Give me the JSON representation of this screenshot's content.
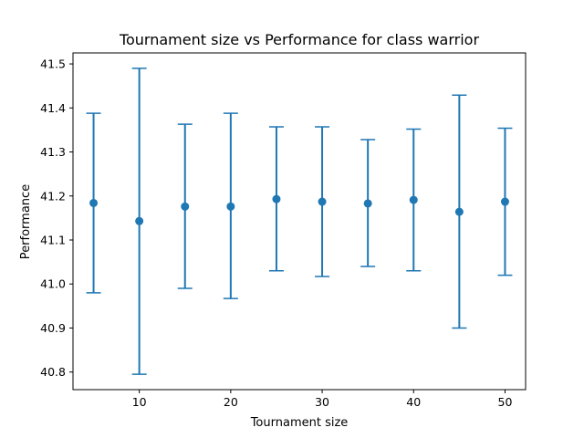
{
  "chart_data": {
    "type": "scatter",
    "title": "Tournament size vs Performance for class warrior",
    "xlabel": "Tournament size",
    "ylabel": "Performance",
    "xlim": [
      2.75,
      52.25
    ],
    "ylim": [
      40.76,
      41.525
    ],
    "xticks": [
      10,
      20,
      30,
      40,
      50
    ],
    "yticks": [
      40.8,
      40.9,
      41.0,
      41.1,
      41.2,
      41.3,
      41.4,
      41.5
    ],
    "color": "#1f77b4",
    "grid": false,
    "series": [
      {
        "points": [
          {
            "x": 5,
            "y": 41.184,
            "err_low": 40.98,
            "err_high": 41.388
          },
          {
            "x": 10,
            "y": 41.143,
            "err_low": 40.795,
            "err_high": 41.49
          },
          {
            "x": 15,
            "y": 41.176,
            "err_low": 40.99,
            "err_high": 41.363
          },
          {
            "x": 20,
            "y": 41.176,
            "err_low": 40.967,
            "err_high": 41.388
          },
          {
            "x": 25,
            "y": 41.193,
            "err_low": 41.03,
            "err_high": 41.357
          },
          {
            "x": 30,
            "y": 41.187,
            "err_low": 41.017,
            "err_high": 41.357
          },
          {
            "x": 35,
            "y": 41.183,
            "err_low": 41.04,
            "err_high": 41.328
          },
          {
            "x": 40,
            "y": 41.191,
            "err_low": 41.03,
            "err_high": 41.352
          },
          {
            "x": 45,
            "y": 41.164,
            "err_low": 40.9,
            "err_high": 41.429
          },
          {
            "x": 50,
            "y": 41.187,
            "err_low": 41.02,
            "err_high": 41.354
          }
        ]
      }
    ]
  }
}
